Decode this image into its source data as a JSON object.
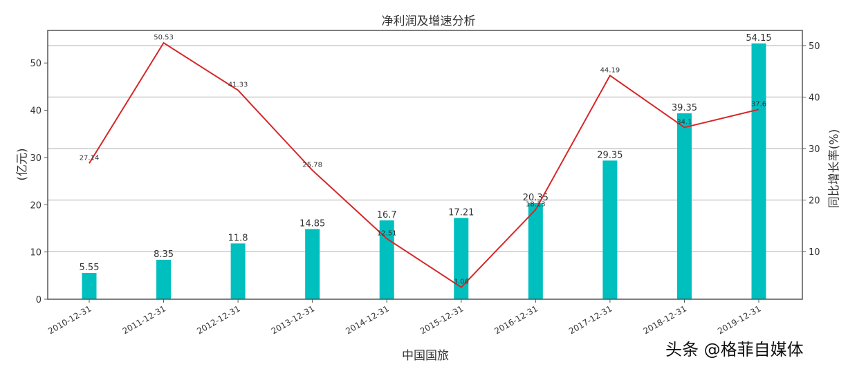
{
  "chart_data": {
    "type": "bar+line",
    "title": "净利润及增速分析",
    "xlabel": "中国国旅",
    "ylabel_left": "(亿元)",
    "ylabel_right": "同比增长率(%)",
    "categories": [
      "2010-12-31",
      "2011-12-31",
      "2012-12-31",
      "2013-12-31",
      "2014-12-31",
      "2015-12-31",
      "2016-12-31",
      "2017-12-31",
      "2018-12-31",
      "2019-12-31"
    ],
    "series": [
      {
        "name": "净利润",
        "type": "bar",
        "axis": "left",
        "color": "#00bfbf",
        "values": [
          5.55,
          8.35,
          11.8,
          14.85,
          16.7,
          17.21,
          20.35,
          29.35,
          39.35,
          54.15
        ]
      },
      {
        "name": "同比增长率",
        "type": "line",
        "axis": "right",
        "color": "#d62728",
        "values": [
          27.14,
          50.53,
          41.33,
          25.78,
          12.51,
          3.06,
          18.13,
          44.19,
          34.1,
          37.6
        ]
      }
    ],
    "left_axis": {
      "ticks": [
        0,
        10,
        20,
        30,
        40,
        50
      ],
      "ylim": [
        0,
        56.9
      ]
    },
    "right_axis": {
      "ticks": [
        10,
        20,
        30,
        40,
        50
      ],
      "ylim": [
        0.74,
        52.95
      ]
    },
    "grid": "horizontal (right-axis ticks)",
    "legend": "none"
  },
  "watermark": "头条 @格菲自媒体"
}
